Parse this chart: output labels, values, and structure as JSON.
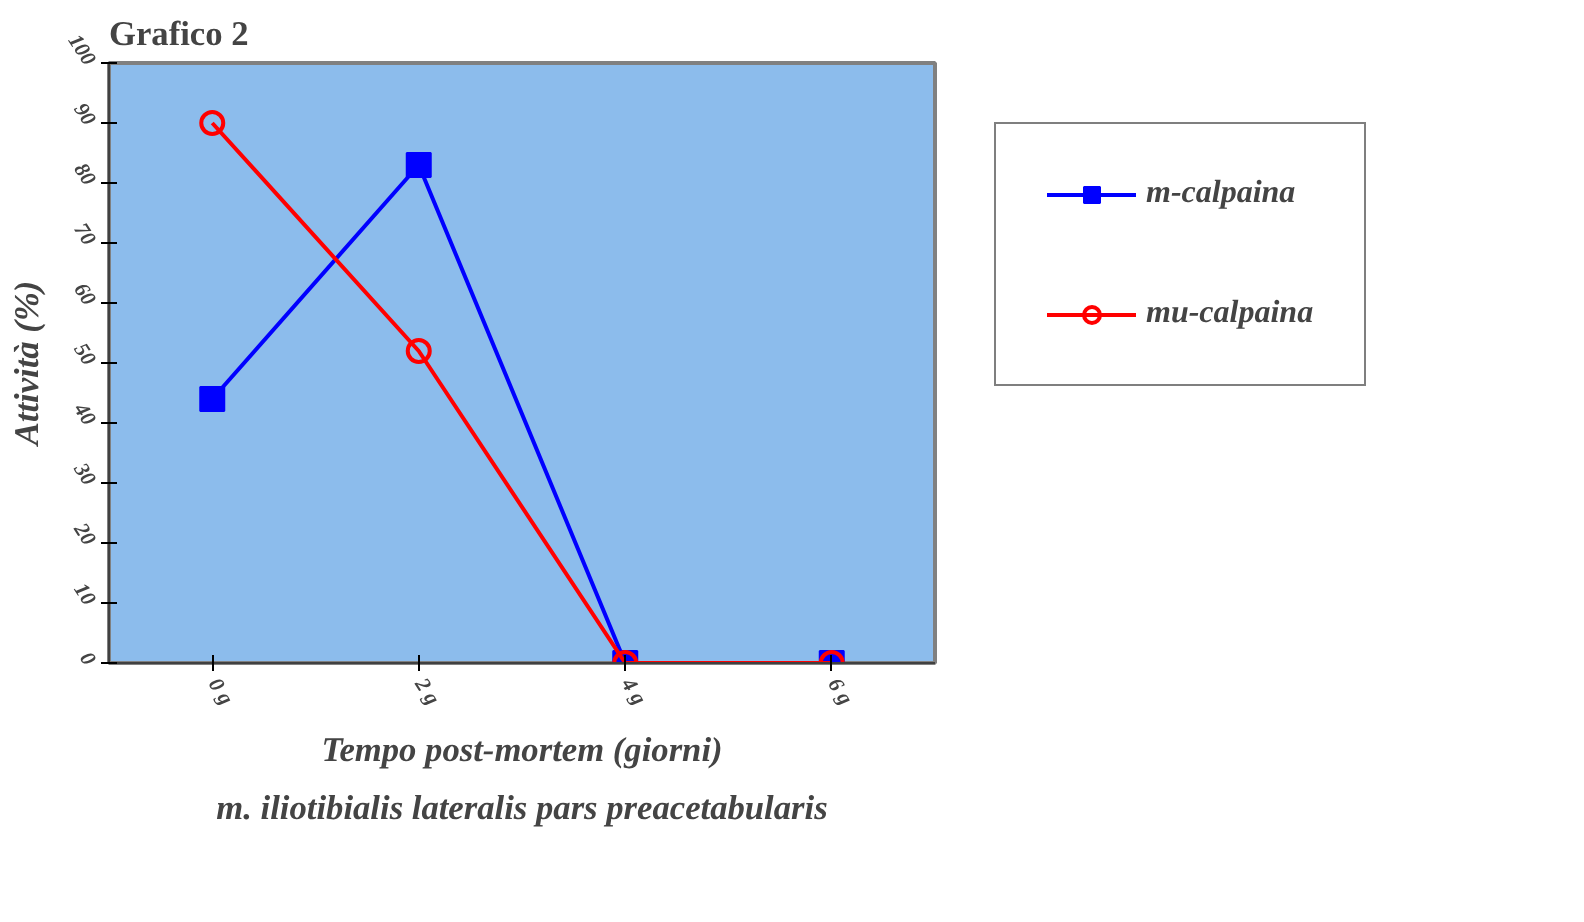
{
  "chart_data": {
    "type": "line",
    "title": "Grafico 2",
    "xlabel": "Tempo post-mortem (giorni)",
    "ylabel": "Attività (%)",
    "annotations": [
      "m. iliotibialis lateralis pars preacetabularis"
    ],
    "categories": [
      "0 g",
      "2 g",
      "4 g",
      "6 g"
    ],
    "series": [
      {
        "name": "m-calpaina",
        "color": "#0000ff",
        "marker": "square",
        "values": [
          44,
          83,
          0,
          0
        ]
      },
      {
        "name": "mu-calpaina",
        "color": "#ff0000",
        "marker": "circle",
        "values": [
          90,
          52,
          0,
          0
        ]
      }
    ],
    "ylim": [
      0,
      100
    ],
    "yticks": [
      0,
      10,
      20,
      30,
      40,
      50,
      60,
      70,
      80,
      90,
      100
    ],
    "grid": false,
    "legend": "right",
    "line_style": "solid"
  }
}
